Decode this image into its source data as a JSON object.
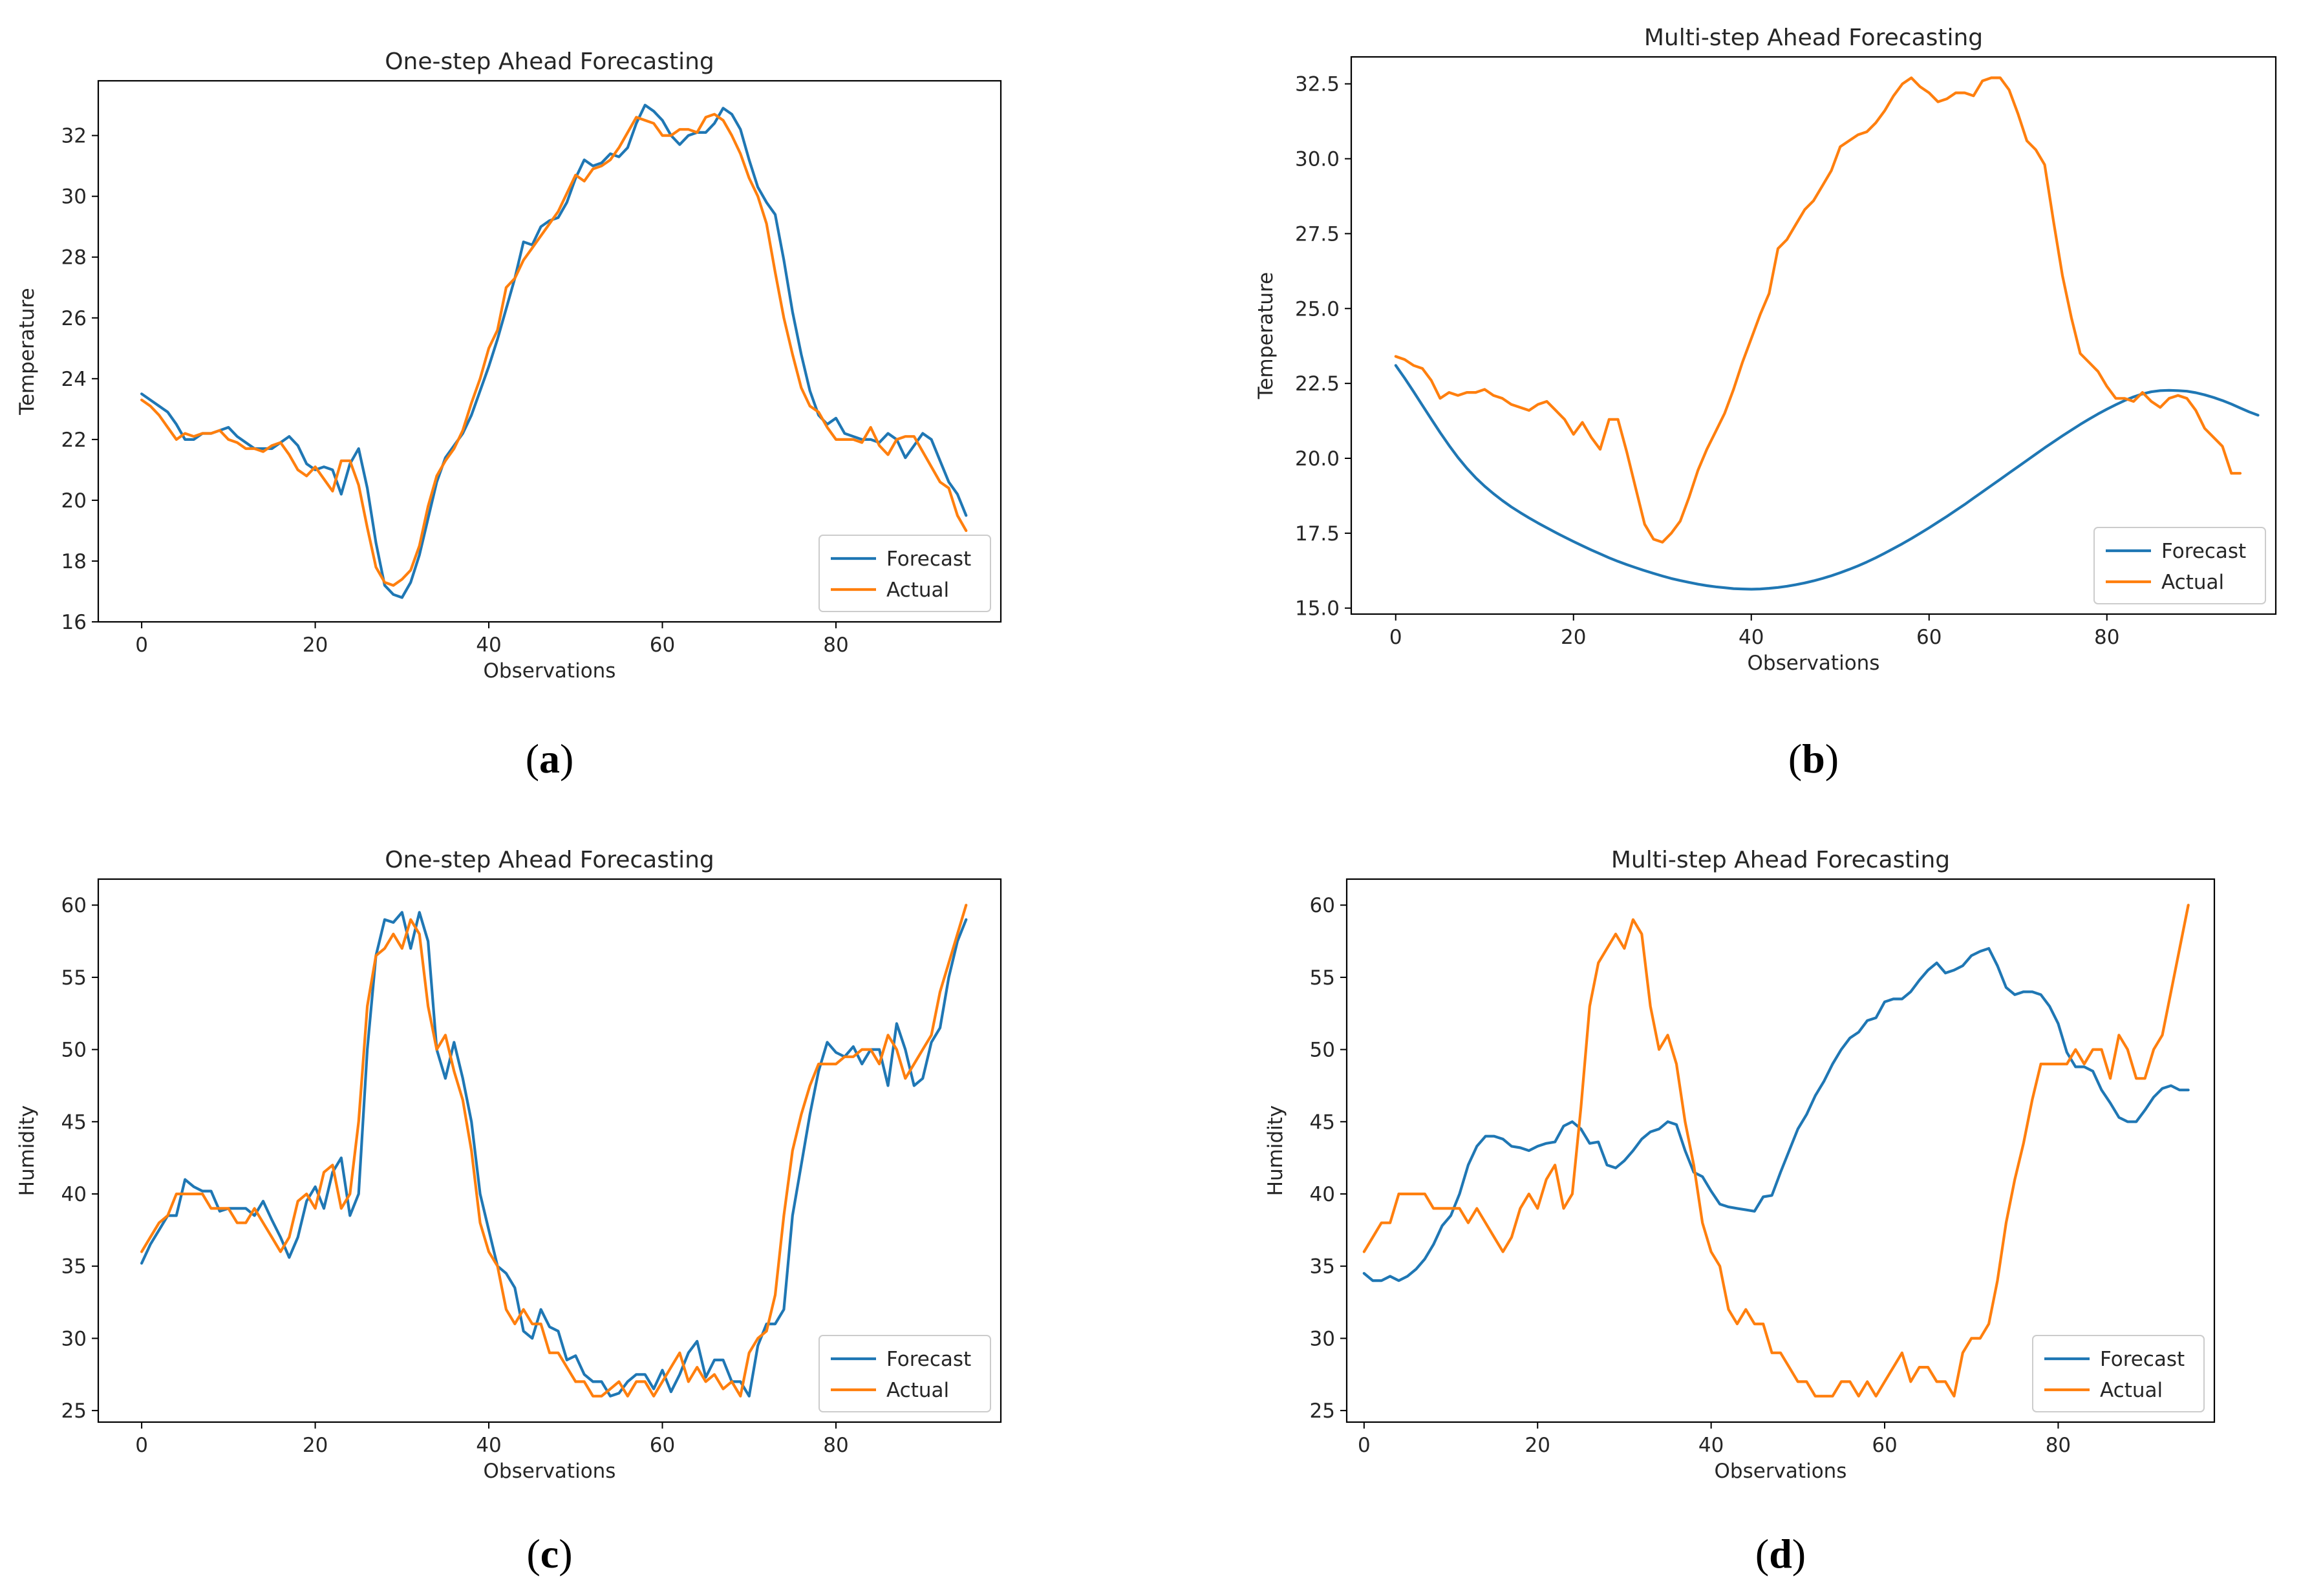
{
  "colors": {
    "forecast": "#1f77b4",
    "actual": "#ff7f0e"
  },
  "chart_data": [
    {
      "id": "a",
      "type": "line",
      "title": "One-step Ahead Forecasting",
      "xlabel": "Observations",
      "ylabel": "Temperature",
      "xlim": [
        -5,
        99
      ],
      "ylim": [
        16,
        33.8
      ],
      "xticks": [
        0,
        20,
        40,
        60,
        80
      ],
      "yticks": [
        16,
        18,
        20,
        22,
        24,
        26,
        28,
        30,
        32
      ],
      "ytick_labels": [
        "16",
        "18",
        "20",
        "22",
        "24",
        "26",
        "28",
        "30",
        "32"
      ],
      "legend_position": "lower-right",
      "panel_label": {
        "open": "(",
        "letter": "a",
        "close": ")"
      },
      "series": [
        {
          "name": "Forecast",
          "color": "#1f77b4",
          "x_start": 0,
          "values": [
            23.5,
            23.3,
            23.1,
            22.9,
            22.5,
            22.0,
            22.0,
            22.2,
            22.2,
            22.3,
            22.4,
            22.1,
            21.9,
            21.7,
            21.7,
            21.7,
            21.9,
            22.1,
            21.8,
            21.2,
            21.0,
            21.1,
            21.0,
            20.2,
            21.2,
            21.7,
            20.4,
            18.6,
            17.2,
            16.9,
            16.8,
            17.3,
            18.2,
            19.4,
            20.6,
            21.4,
            21.8,
            22.2,
            22.8,
            23.6,
            24.4,
            25.3,
            26.3,
            27.3,
            28.5,
            28.4,
            29.0,
            29.2,
            29.3,
            29.8,
            30.6,
            31.2,
            31.0,
            31.1,
            31.4,
            31.3,
            31.6,
            32.4,
            33.0,
            32.8,
            32.5,
            32.0,
            31.7,
            32.0,
            32.1,
            32.1,
            32.4,
            32.9,
            32.7,
            32.2,
            31.2,
            30.3,
            29.8,
            29.4,
            27.9,
            26.2,
            24.8,
            23.6,
            22.8,
            22.5,
            22.7,
            22.2,
            22.1,
            22.0,
            22.0,
            21.9,
            22.2,
            22.0,
            21.4,
            21.8,
            22.2,
            22.0,
            21.3,
            20.6,
            20.2,
            19.5
          ]
        },
        {
          "name": "Actual",
          "color": "#ff7f0e",
          "x_start": 0,
          "values": [
            23.3,
            23.1,
            22.8,
            22.4,
            22.0,
            22.2,
            22.1,
            22.2,
            22.2,
            22.3,
            22.0,
            21.9,
            21.7,
            21.7,
            21.6,
            21.8,
            21.9,
            21.5,
            21.0,
            20.8,
            21.1,
            20.7,
            20.3,
            21.3,
            21.3,
            20.5,
            19.1,
            17.8,
            17.3,
            17.2,
            17.4,
            17.7,
            18.5,
            19.8,
            20.8,
            21.3,
            21.7,
            22.3,
            23.2,
            24.0,
            25.0,
            25.6,
            27.0,
            27.3,
            27.9,
            28.3,
            28.7,
            29.1,
            29.5,
            30.1,
            30.7,
            30.5,
            30.9,
            31.0,
            31.2,
            31.6,
            32.1,
            32.6,
            32.5,
            32.4,
            32.0,
            32.0,
            32.2,
            32.2,
            32.1,
            32.6,
            32.7,
            32.5,
            32.0,
            31.4,
            30.6,
            30.0,
            29.1,
            27.5,
            26.0,
            24.8,
            23.7,
            23.1,
            22.9,
            22.4,
            22.0,
            22.0,
            22.0,
            21.9,
            22.4,
            21.8,
            21.5,
            22.0,
            22.1,
            22.1,
            21.6,
            21.1,
            20.6,
            20.4,
            19.5,
            19.0
          ]
        }
      ]
    },
    {
      "id": "b",
      "type": "line",
      "title": "Multi-step Ahead Forecasting",
      "xlabel": "Observations",
      "ylabel": "Temperature",
      "xlim": [
        -5,
        99
      ],
      "ylim": [
        14.8,
        33.4
      ],
      "xticks": [
        0,
        20,
        40,
        60,
        80
      ],
      "yticks": [
        15,
        17.5,
        20,
        22.5,
        25,
        27.5,
        30,
        32.5
      ],
      "ytick_labels": [
        "15.0",
        "17.5",
        "20.0",
        "22.5",
        "25.0",
        "27.5",
        "30.0",
        "32.5"
      ],
      "legend_position": "lower-right",
      "panel_label": {
        "open": "(",
        "letter": "b",
        "close": ")"
      },
      "series": [
        {
          "name": "Forecast",
          "color": "#1f77b4",
          "x_start": 0,
          "values": [
            23.1,
            22.68,
            22.23,
            21.77,
            21.31,
            20.86,
            20.43,
            20.03,
            19.67,
            19.35,
            19.07,
            18.82,
            18.59,
            18.38,
            18.19,
            18.01,
            17.84,
            17.68,
            17.52,
            17.37,
            17.22,
            17.08,
            16.94,
            16.81,
            16.68,
            16.56,
            16.45,
            16.35,
            16.25,
            16.16,
            16.07,
            15.99,
            15.92,
            15.86,
            15.8,
            15.75,
            15.71,
            15.68,
            15.65,
            15.64,
            15.63,
            15.64,
            15.66,
            15.69,
            15.73,
            15.78,
            15.84,
            15.91,
            15.99,
            16.08,
            16.18,
            16.29,
            16.41,
            16.54,
            16.68,
            16.83,
            16.99,
            17.15,
            17.32,
            17.5,
            17.68,
            17.87,
            18.06,
            18.26,
            18.46,
            18.67,
            18.88,
            19.09,
            19.3,
            19.51,
            19.72,
            19.93,
            20.14,
            20.35,
            20.55,
            20.75,
            20.94,
            21.13,
            21.31,
            21.48,
            21.64,
            21.79,
            21.93,
            22.05,
            22.15,
            22.22,
            22.26,
            22.27,
            22.26,
            22.24,
            22.19,
            22.12,
            22.03,
            21.93,
            21.81,
            21.68,
            21.55,
            21.44
          ]
        },
        {
          "name": "Actual",
          "color": "#ff7f0e",
          "x_start": 0,
          "values": [
            23.4,
            23.3,
            23.1,
            23.0,
            22.6,
            22.0,
            22.2,
            22.1,
            22.2,
            22.2,
            22.3,
            22.1,
            22.0,
            21.8,
            21.7,
            21.6,
            21.8,
            21.9,
            21.6,
            21.3,
            20.8,
            21.2,
            20.7,
            20.3,
            21.3,
            21.3,
            20.2,
            19.0,
            17.8,
            17.3,
            17.2,
            17.5,
            17.9,
            18.7,
            19.6,
            20.3,
            20.9,
            21.5,
            22.3,
            23.2,
            24.0,
            24.8,
            25.5,
            27.0,
            27.3,
            27.8,
            28.3,
            28.6,
            29.1,
            29.6,
            30.4,
            30.6,
            30.8,
            30.9,
            31.2,
            31.6,
            32.1,
            32.5,
            32.7,
            32.4,
            32.2,
            31.9,
            32.0,
            32.2,
            32.2,
            32.1,
            32.6,
            32.7,
            32.7,
            32.3,
            31.5,
            30.6,
            30.3,
            29.8,
            27.9,
            26.1,
            24.7,
            23.5,
            23.2,
            22.9,
            22.4,
            22.0,
            22.0,
            21.9,
            22.2,
            21.9,
            21.7,
            22.0,
            22.1,
            22.0,
            21.6,
            21.0,
            20.7,
            20.4,
            19.5,
            19.5
          ]
        }
      ]
    },
    {
      "id": "c",
      "type": "line",
      "title": "One-step Ahead Forecasting",
      "xlabel": "Observations",
      "ylabel": "Humidity",
      "xlim": [
        -5,
        99
      ],
      "ylim": [
        24.2,
        61.8
      ],
      "xticks": [
        0,
        20,
        40,
        60,
        80
      ],
      "yticks": [
        25,
        30,
        35,
        40,
        45,
        50,
        55,
        60
      ],
      "ytick_labels": [
        "25",
        "30",
        "35",
        "40",
        "45",
        "50",
        "55",
        "60"
      ],
      "legend_position": "lower-right",
      "panel_label": {
        "open": "(",
        "letter": "c",
        "close": ")"
      },
      "series": [
        {
          "name": "Forecast",
          "color": "#1f77b4",
          "x_start": 0,
          "values": [
            35.2,
            36.5,
            37.5,
            38.5,
            38.5,
            41.0,
            40.5,
            40.2,
            40.2,
            38.8,
            39.0,
            39.0,
            39.0,
            38.5,
            39.5,
            38.2,
            37.0,
            35.6,
            37.0,
            39.5,
            40.5,
            39.0,
            41.5,
            42.5,
            38.5,
            40.0,
            50.0,
            56.5,
            59.0,
            58.8,
            59.5,
            57.0,
            59.5,
            57.5,
            50.0,
            48.0,
            50.5,
            48.0,
            45.0,
            40.0,
            37.5,
            35.0,
            34.5,
            33.5,
            30.5,
            30.0,
            32.0,
            30.8,
            30.5,
            28.5,
            28.8,
            27.5,
            27.0,
            27.0,
            26.0,
            26.2,
            27.0,
            27.5,
            27.5,
            26.5,
            27.8,
            26.3,
            27.5,
            29.0,
            29.8,
            27.3,
            28.5,
            28.5,
            27.0,
            27.0,
            26.0,
            29.5,
            31.0,
            31.0,
            32.0,
            38.5,
            42.0,
            45.5,
            48.5,
            50.5,
            49.8,
            49.5,
            50.2,
            49.0,
            50.0,
            50.0,
            47.5,
            51.8,
            50.0,
            47.5,
            48.0,
            50.5,
            51.5,
            55.0,
            57.5,
            59.0
          ]
        },
        {
          "name": "Actual",
          "color": "#ff7f0e",
          "x_start": 0,
          "values": [
            36.0,
            37.0,
            38.0,
            38.5,
            40.0,
            40.0,
            40.0,
            40.0,
            39.0,
            39.0,
            39.0,
            38.0,
            38.0,
            39.0,
            38.0,
            37.0,
            36.0,
            37.0,
            39.5,
            40.0,
            39.0,
            41.5,
            42.0,
            39.0,
            40.0,
            45.0,
            53.0,
            56.5,
            57.0,
            58.0,
            57.0,
            59.0,
            58.0,
            53.0,
            50.0,
            51.0,
            48.5,
            46.5,
            43.0,
            38.0,
            36.0,
            35.0,
            32.0,
            31.0,
            32.0,
            31.0,
            31.0,
            29.0,
            29.0,
            28.0,
            27.0,
            27.0,
            26.0,
            26.0,
            26.5,
            27.0,
            26.0,
            27.0,
            27.0,
            26.0,
            27.0,
            28.0,
            29.0,
            27.0,
            28.0,
            27.0,
            27.5,
            26.5,
            27.0,
            26.0,
            29.0,
            30.0,
            30.5,
            33.0,
            38.5,
            43.0,
            45.5,
            47.5,
            49.0,
            49.0,
            49.0,
            49.5,
            49.5,
            50.0,
            50.0,
            49.0,
            51.0,
            50.0,
            48.0,
            49.0,
            50.0,
            51.0,
            54.0,
            56.0,
            58.0,
            60.0
          ]
        }
      ]
    },
    {
      "id": "d",
      "type": "line",
      "title": "Multi-step Ahead Forecasting",
      "xlabel": "Observations",
      "ylabel": "Humidity",
      "xlim": [
        -2,
        98
      ],
      "ylim": [
        24.2,
        61.8
      ],
      "xticks": [
        0,
        20,
        40,
        60,
        80
      ],
      "yticks": [
        25,
        30,
        35,
        40,
        45,
        50,
        55,
        60
      ],
      "ytick_labels": [
        "25",
        "30",
        "35",
        "40",
        "45",
        "50",
        "55",
        "60"
      ],
      "legend_position": "lower-right",
      "panel_label": {
        "open": "(",
        "letter": "d",
        "close": ")"
      },
      "series": [
        {
          "name": "Forecast",
          "color": "#1f77b4",
          "x_start": 0,
          "values": [
            34.5,
            34.0,
            34.0,
            34.3,
            34.0,
            34.3,
            34.8,
            35.5,
            36.5,
            37.8,
            38.5,
            40.0,
            42.0,
            43.3,
            44.0,
            44.0,
            43.8,
            43.3,
            43.2,
            43.0,
            43.3,
            43.5,
            43.6,
            44.7,
            45.0,
            44.5,
            43.5,
            43.6,
            42.0,
            41.8,
            42.3,
            43.0,
            43.8,
            44.3,
            44.5,
            45.0,
            44.8,
            43.0,
            41.5,
            41.2,
            40.2,
            39.3,
            39.1,
            39.0,
            38.9,
            38.8,
            39.8,
            39.9,
            41.5,
            43.0,
            44.5,
            45.5,
            46.8,
            47.8,
            49.0,
            50.0,
            50.8,
            51.2,
            52.0,
            52.2,
            53.3,
            53.5,
            53.5,
            54.0,
            54.8,
            55.5,
            56.0,
            55.3,
            55.5,
            55.8,
            56.5,
            56.8,
            57.0,
            55.8,
            54.3,
            53.8,
            54.0,
            54.0,
            53.8,
            53.0,
            51.8,
            49.8,
            48.8,
            48.8,
            48.5,
            47.2,
            46.3,
            45.3,
            45.0,
            45.0,
            45.8,
            46.7,
            47.3,
            47.5,
            47.2,
            47.2
          ]
        },
        {
          "name": "Actual",
          "color": "#ff7f0e",
          "x_start": 0,
          "values": [
            36.0,
            37.0,
            38.0,
            38.0,
            40.0,
            40.0,
            40.0,
            40.0,
            39.0,
            39.0,
            39.0,
            39.0,
            38.0,
            39.0,
            38.0,
            37.0,
            36.0,
            37.0,
            39.0,
            40.0,
            39.0,
            41.0,
            42.0,
            39.0,
            40.0,
            46.0,
            53.0,
            56.0,
            57.0,
            58.0,
            57.0,
            59.0,
            58.0,
            53.0,
            50.0,
            51.0,
            49.0,
            45.0,
            42.0,
            38.0,
            36.0,
            35.0,
            32.0,
            31.0,
            32.0,
            31.0,
            31.0,
            29.0,
            29.0,
            28.0,
            27.0,
            27.0,
            26.0,
            26.0,
            26.0,
            27.0,
            27.0,
            26.0,
            27.0,
            26.0,
            27.0,
            28.0,
            29.0,
            27.0,
            28.0,
            28.0,
            27.0,
            27.0,
            26.0,
            29.0,
            30.0,
            30.0,
            31.0,
            34.0,
            38.0,
            41.0,
            43.5,
            46.5,
            49.0,
            49.0,
            49.0,
            49.0,
            50.0,
            49.0,
            50.0,
            50.0,
            48.0,
            51.0,
            50.0,
            48.0,
            48.0,
            50.0,
            51.0,
            54.0,
            57.0,
            60.0
          ]
        }
      ]
    }
  ]
}
